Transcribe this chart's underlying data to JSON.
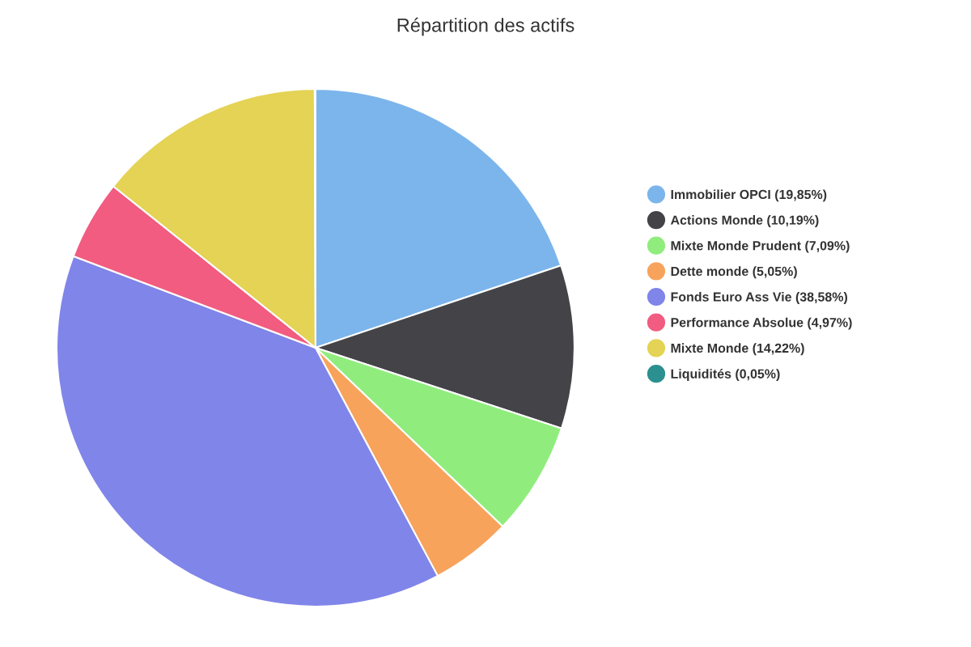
{
  "chart_data": {
    "type": "pie",
    "title": "Répartition des actifs",
    "categories": [
      "Immobilier OPCI (19,85%)",
      "Actions Monde (10,19%)",
      "Mixte Monde Prudent (7,09%)",
      "Dette monde (5,05%)",
      "Fonds Euro Ass Vie (38,58%)",
      "Performance Absolue (4,97%)",
      "Mixte Monde (14,22%)",
      "Liquidités (0,05%)"
    ],
    "values": [
      19.85,
      10.19,
      7.09,
      5.05,
      38.58,
      4.97,
      14.22,
      0.05
    ],
    "colors": [
      "#7cb5ec",
      "#434348",
      "#90ed7d",
      "#f7a35c",
      "#8085e9",
      "#f15c80",
      "#e4d354",
      "#2b908f"
    ],
    "legend": "right"
  }
}
